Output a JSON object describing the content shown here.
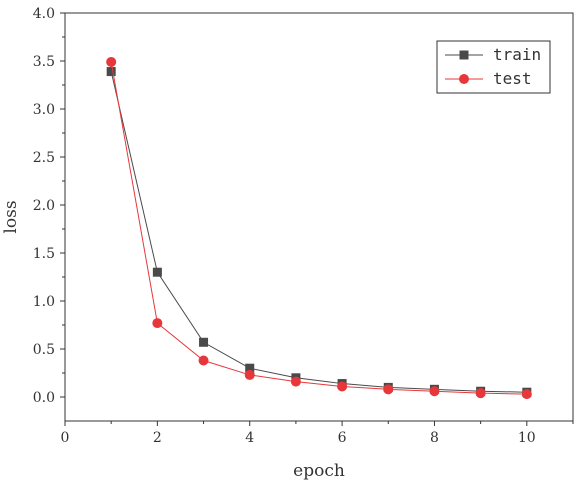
{
  "chart_data": {
    "type": "line",
    "xlabel": "epoch",
    "ylabel": "loss",
    "xlim": [
      0,
      11
    ],
    "ylim": [
      -0.25,
      4.0
    ],
    "xticks": [
      0,
      2,
      4,
      6,
      8,
      10
    ],
    "yticks": [
      0.0,
      0.5,
      1.0,
      1.5,
      2.0,
      2.5,
      3.0,
      3.5,
      4.0
    ],
    "xtick_labels": [
      "0",
      "2",
      "4",
      "6",
      "8",
      "10"
    ],
    "ytick_labels": [
      "0.0",
      "0.5",
      "1.0",
      "1.5",
      "2.0",
      "2.5",
      "3.0",
      "3.5",
      "4.0"
    ],
    "grid": false,
    "legend_position": "top-right",
    "x": [
      1,
      2,
      3,
      4,
      5,
      6,
      7,
      8,
      9,
      10
    ],
    "series": [
      {
        "name": "train",
        "color": "#4a4a4a",
        "marker": "square",
        "values": [
          3.39,
          1.3,
          0.57,
          0.3,
          0.2,
          0.14,
          0.1,
          0.08,
          0.06,
          0.05
        ]
      },
      {
        "name": "test",
        "color": "#e8373a",
        "marker": "circle",
        "values": [
          3.49,
          0.77,
          0.38,
          0.23,
          0.16,
          0.11,
          0.08,
          0.06,
          0.04,
          0.03
        ]
      }
    ]
  }
}
